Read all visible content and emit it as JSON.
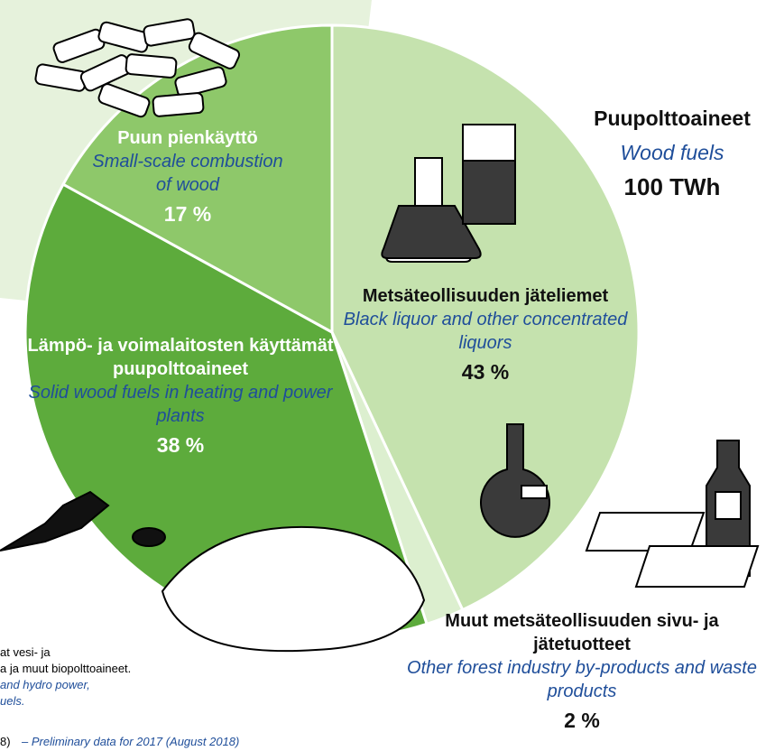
{
  "chart_data": {
    "type": "pie",
    "total_title": "Puupolttoaineet",
    "total_subtitle": "Wood fuels",
    "total_value": "100 TWh",
    "categories": [
      "Metsäteollisuuden jäteliemet",
      "Muut metsäteollisuuden sivu- ja jätetuotteet",
      "Lämpö- ja voimalaitosten käyttämät puupolttoaineet",
      "Puun pienkäyttö"
    ],
    "categories_en": [
      "Black liquor and other concentrated liquors",
      "Other forest industry by-products and waste products",
      "Solid wood fuels in heating and power plants",
      "Small-scale combustion of wood"
    ],
    "values": [
      43,
      2,
      38,
      17
    ],
    "value_labels": [
      "43 %",
      "2 %",
      "38 %",
      "17 %"
    ],
    "colors": [
      "#c5e2ae",
      "#dcefcf",
      "#5dab3c",
      "#8ec86a"
    ],
    "notes": [
      "at vesi- ja",
      "a ja muut biopolttoaineet.",
      "and hydro power,",
      "uels.",
      "8)",
      "– Preliminary data for 2017 (August 2018)"
    ]
  }
}
